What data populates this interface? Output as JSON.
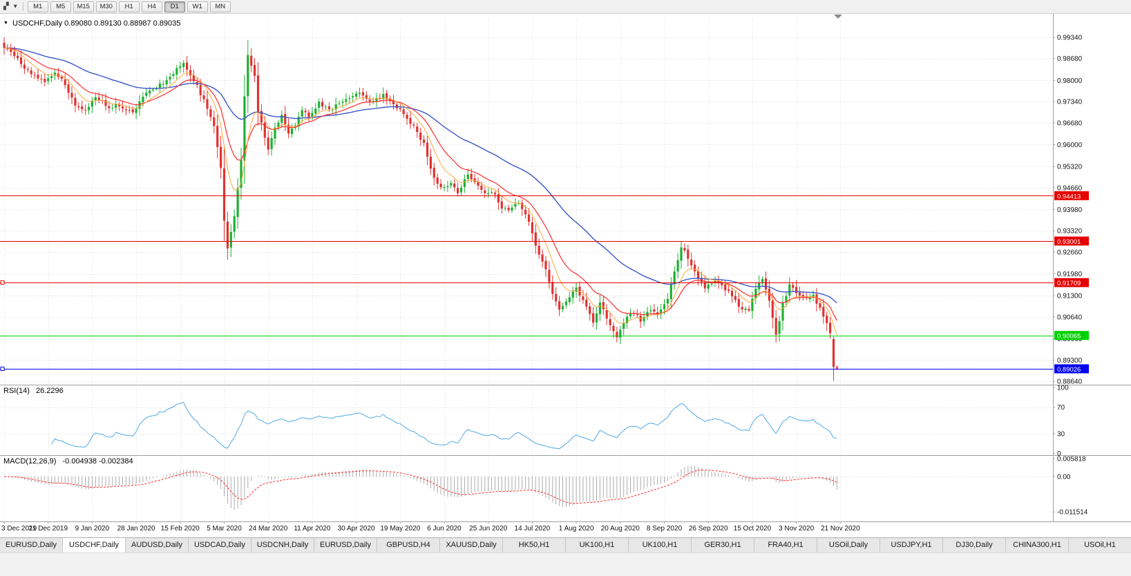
{
  "toolbar": {
    "icon_glyphs": {
      "chart_type": "▞",
      "dropdown": "▾"
    },
    "timeframes": [
      "M1",
      "M5",
      "M15",
      "M30",
      "H1",
      "H4",
      "D1",
      "W1",
      "MN"
    ],
    "active_timeframe": "D1"
  },
  "chart": {
    "collapse_icon": "▼",
    "header_text": "USDCHF,Daily 0.89080 0.89130 0.88987 0.89035"
  },
  "rsi": {
    "label": "RSI(14)",
    "value": "26.2296",
    "axis": [
      "100",
      "70",
      "30",
      "0"
    ],
    "levels": [
      70,
      30
    ]
  },
  "macd": {
    "label": "MACD(12,26,9)",
    "values": "-0.004938 -0.002384",
    "axis_top": "0.005818",
    "axis_zero": "0.00",
    "axis_bottom": "-0.011514"
  },
  "chart_data": {
    "type": "candlestick",
    "symbol": "USDCHF",
    "period": "Daily",
    "axis_range": {
      "top": 0.9934,
      "bottom": 0.8864
    },
    "last_candle": {
      "open": 0.8908,
      "high": 0.8913,
      "low": 0.88987,
      "close": 0.89035
    },
    "prev_candle": {
      "open": 0.8995,
      "high": 0.9002,
      "low": 0.8866,
      "close": 0.8908
    },
    "price_axis_ticks": [
      "0.99340",
      "0.98680",
      "0.98000",
      "0.97340",
      "0.96680",
      "0.96000",
      "0.95320",
      "0.94660",
      "0.93980",
      "0.93320",
      "0.92660",
      "0.91980",
      "0.91300",
      "0.90640",
      "0.89960",
      "0.89300",
      "0.88640"
    ],
    "date_ticks": [
      "3 Dec 2019",
      "21 Dec 2019",
      "9 Jan 2020",
      "28 Jan 2020",
      "15 Feb 2020",
      "5 Mar 2020",
      "24 Mar 2020",
      "11 Apr 2020",
      "30 Apr 2020",
      "19 May 2020",
      "6 Jun 2020",
      "25 Jun 2020",
      "14 Jul 2020",
      "1 Aug 2020",
      "20 Aug 2020",
      "8 Sep 2020",
      "26 Sep 2020",
      "15 Oct 2020",
      "3 Nov 2020",
      "21 Nov 2020"
    ],
    "horizontal_lines": [
      {
        "price": 0.94413,
        "label": "0.94413",
        "color": "#e60000",
        "handle": false
      },
      {
        "price": 0.93001,
        "label": "0.93001",
        "color": "#e60000",
        "handle": false
      },
      {
        "price": 0.91709,
        "label": "0.91709",
        "color": "#e60000",
        "handle": true
      },
      {
        "price": 0.90065,
        "label": "0.90065",
        "color": "#00d200",
        "handle": false
      },
      {
        "price": 0.89026,
        "label": "0.89026",
        "color": "#0000f0",
        "handle": true
      }
    ],
    "indicator_readings": {
      "rsi": 26.2296,
      "macd_main": -0.004938,
      "macd_signal": -0.002384
    },
    "ma_periods": {
      "fast": 8,
      "mid": 16,
      "slow": 48
    },
    "price_path": [
      [
        0,
        0.9905
      ],
      [
        3,
        0.9875
      ],
      [
        6,
        0.984
      ],
      [
        9,
        0.981
      ],
      [
        12,
        0.98
      ],
      [
        15,
        0.9828
      ],
      [
        18,
        0.979
      ],
      [
        21,
        0.9722
      ],
      [
        24,
        0.9708
      ],
      [
        27,
        0.9745
      ],
      [
        31,
        0.9718
      ],
      [
        34,
        0.9724
      ],
      [
        38,
        0.97
      ],
      [
        41,
        0.9755
      ],
      [
        44,
        0.977
      ],
      [
        48,
        0.98
      ],
      [
        51,
        0.9838
      ],
      [
        53,
        0.9848
      ],
      [
        56,
        0.98
      ],
      [
        59,
        0.974
      ],
      [
        62,
        0.9655
      ],
      [
        64,
        0.953
      ],
      [
        65,
        0.936
      ],
      [
        66,
        0.928
      ],
      [
        68,
        0.938
      ],
      [
        70,
        0.955
      ],
      [
        71,
        0.975
      ],
      [
        72,
        0.9875
      ],
      [
        74,
        0.982
      ],
      [
        75,
        0.9705
      ],
      [
        77,
        0.9625
      ],
      [
        78,
        0.958
      ],
      [
        80,
        0.965
      ],
      [
        82,
        0.969
      ],
      [
        84,
        0.964
      ],
      [
        86,
        0.9665
      ],
      [
        88,
        0.971
      ],
      [
        90,
        0.969
      ],
      [
        93,
        0.973
      ],
      [
        96,
        0.9705
      ],
      [
        99,
        0.973
      ],
      [
        102,
        0.9748
      ],
      [
        105,
        0.976
      ],
      [
        108,
        0.9735
      ],
      [
        112,
        0.9752
      ],
      [
        115,
        0.9726
      ],
      [
        118,
        0.97
      ],
      [
        121,
        0.9655
      ],
      [
        124,
        0.96
      ],
      [
        126,
        0.952
      ],
      [
        129,
        0.9462
      ],
      [
        132,
        0.9475
      ],
      [
        134,
        0.945
      ],
      [
        137,
        0.9505
      ],
      [
        140,
        0.947
      ],
      [
        142,
        0.9445
      ],
      [
        145,
        0.9448
      ],
      [
        147,
        0.9405
      ],
      [
        150,
        0.94
      ],
      [
        152,
        0.942
      ],
      [
        155,
        0.936
      ],
      [
        157,
        0.9285
      ],
      [
        160,
        0.921
      ],
      [
        162,
        0.913
      ],
      [
        164,
        0.9085
      ],
      [
        167,
        0.9125
      ],
      [
        169,
        0.915
      ],
      [
        172,
        0.9095
      ],
      [
        174,
        0.905
      ],
      [
        176,
        0.911
      ],
      [
        179,
        0.9035
      ],
      [
        181,
        0.9
      ],
      [
        184,
        0.906
      ],
      [
        186,
        0.908
      ],
      [
        188,
        0.9055
      ],
      [
        191,
        0.9085
      ],
      [
        193,
        0.9065
      ],
      [
        196,
        0.9125
      ],
      [
        198,
        0.92
      ],
      [
        200,
        0.9285
      ],
      [
        202,
        0.925
      ],
      [
        205,
        0.918
      ],
      [
        207,
        0.9155
      ],
      [
        210,
        0.917
      ],
      [
        212,
        0.916
      ],
      [
        215,
        0.913
      ],
      [
        217,
        0.9095
      ],
      [
        220,
        0.908
      ],
      [
        222,
        0.915
      ],
      [
        224,
        0.918
      ],
      [
        226,
        0.911
      ],
      [
        228,
        0.9005
      ],
      [
        230,
        0.9105
      ],
      [
        232,
        0.9165
      ],
      [
        234,
        0.914
      ],
      [
        237,
        0.9125
      ],
      [
        239,
        0.913
      ],
      [
        242,
        0.907
      ],
      [
        244,
        0.901
      ],
      [
        245,
        0.895
      ],
      [
        246,
        0.8904
      ]
    ]
  },
  "colors": {
    "bull": "#1cb031",
    "bear": "#e03232",
    "ma_fast": "#ffa838",
    "ma_mid": "#ff2a2a",
    "ma_slow": "#3a57c8",
    "rsi_line": "#4fa8e8",
    "macd_hist": "#ababab",
    "macd_signal": "#ff2a2a",
    "grid": "#dcdcdc",
    "separator": "#9e9e9e",
    "axis_text": "#111111"
  },
  "tabs": {
    "active_index": 1,
    "items": [
      "EURUSD,Daily",
      "USDCHF,Daily",
      "AUDUSD,Daily",
      "USDCAD,Daily",
      "USDCNH,Daily",
      "EURUSD,Daily",
      "GBPUSD,H4",
      "XAUUSD,Daily",
      "HK50,H1",
      "UK100,H1",
      "UK100,H1",
      "GER30,H1",
      "FRA40,H1",
      "USOil,Daily",
      "USDJPY,H1",
      "DJ30,Daily",
      "CHINA300,H1",
      "USOil,H1"
    ]
  }
}
